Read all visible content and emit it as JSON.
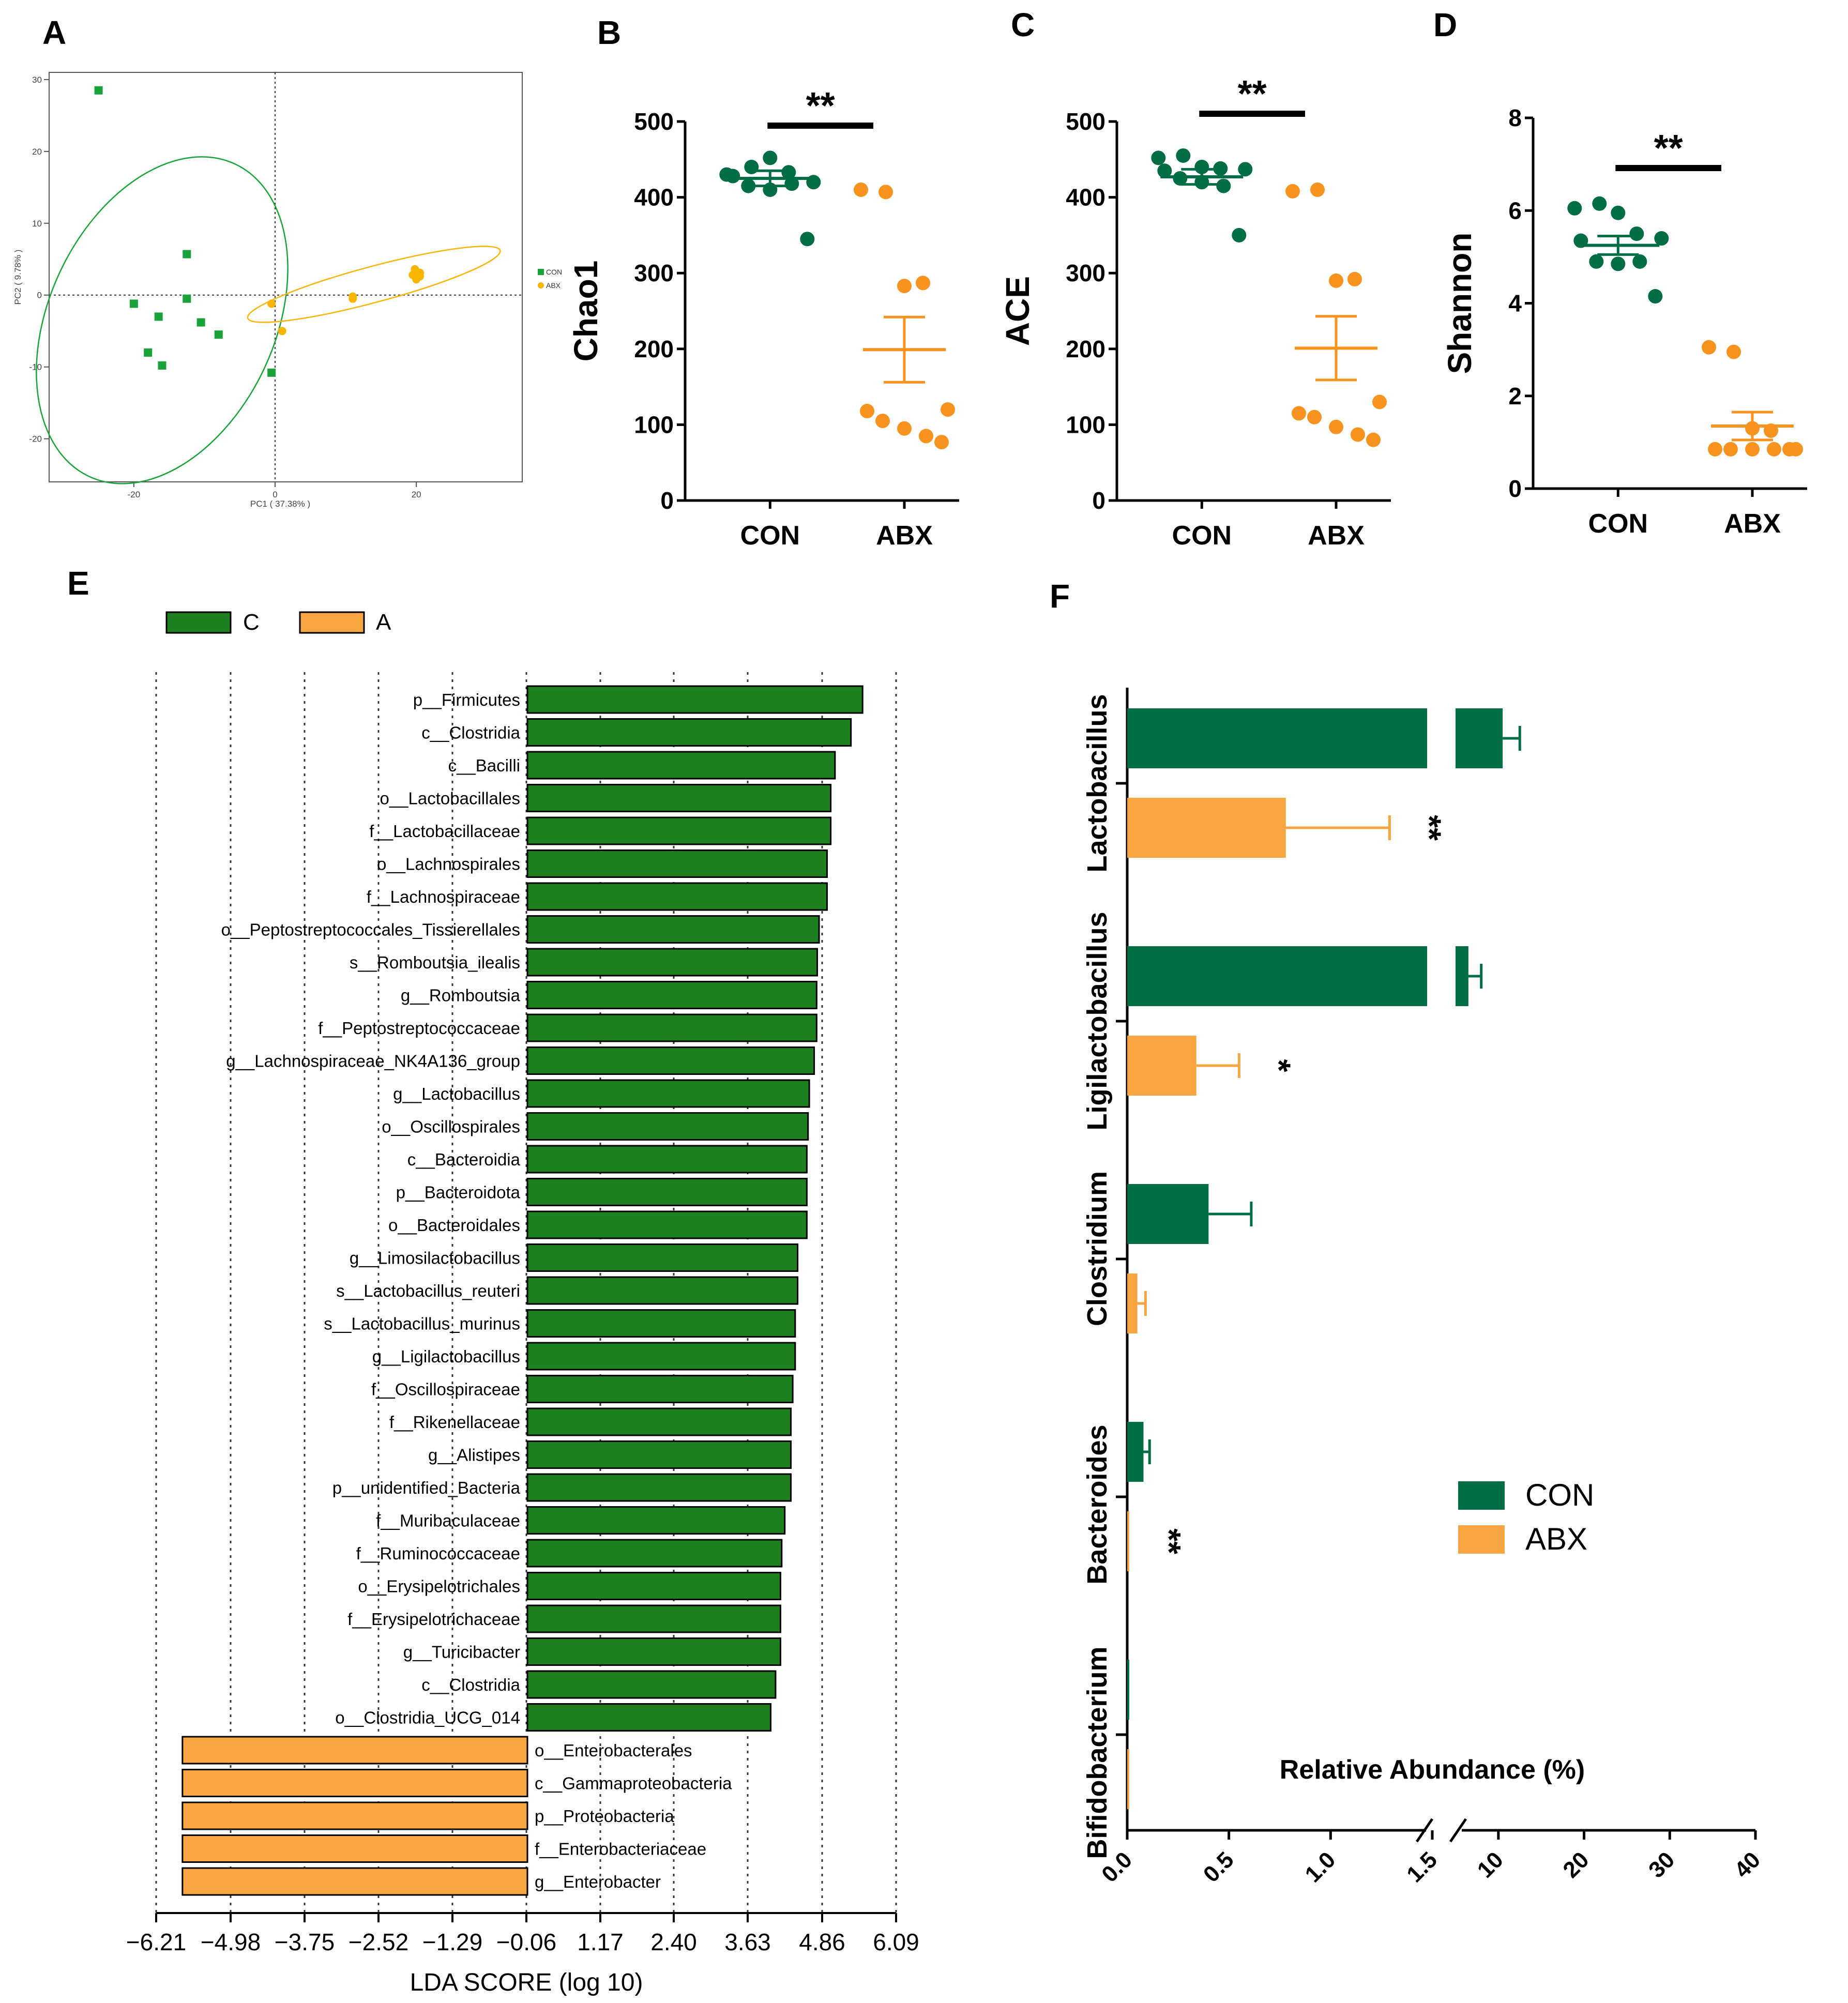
{
  "colors": {
    "con": "#006d44",
    "abx": "#f7931e",
    "pca_con": "#1aa33a",
    "pca_abx": "#f7b500",
    "lefse_c": "#1e7f1e",
    "lefse_a": "#f7a540",
    "f_con": "#006d44",
    "f_abx": "#f7a540"
  },
  "panels": {
    "A": "A",
    "B": "B",
    "C": "C",
    "D": "D",
    "E": "E",
    "F": "F"
  },
  "chart_data": [
    {
      "id": "A",
      "type": "scatter",
      "title": "",
      "xlabel": "PC1 ( 37.38% )",
      "ylabel": "PC2 ( 9.78% )",
      "xlim": [
        -32,
        35
      ],
      "ylim": [
        -26,
        31
      ],
      "xticks": [
        -20,
        0,
        20
      ],
      "yticks": [
        30,
        20,
        10,
        0,
        -10,
        -20
      ],
      "legend": [
        "CON",
        "ABX"
      ],
      "series": [
        {
          "name": "CON",
          "points": [
            [
              -25,
              28.5
            ],
            [
              -20,
              -1.2
            ],
            [
              -16.5,
              -3
            ],
            [
              -18,
              -8
            ],
            [
              -16,
              -9.8
            ],
            [
              -12.5,
              5.7
            ],
            [
              -12.5,
              -0.5
            ],
            [
              -10.5,
              -3.8
            ],
            [
              -8,
              -5.5
            ],
            [
              -0.5,
              -10.8
            ]
          ]
        },
        {
          "name": "ABX",
          "points": [
            [
              -0.5,
              -1.2
            ],
            [
              1,
              -5
            ],
            [
              11,
              -0.5
            ],
            [
              11,
              -0.2
            ],
            [
              19.5,
              2.8
            ],
            [
              20,
              3.2
            ],
            [
              20.5,
              2.6
            ],
            [
              20,
              2.2
            ],
            [
              19.8,
              3.6
            ],
            [
              20.5,
              3.1
            ]
          ]
        }
      ],
      "ellipses": [
        {
          "name": "CON",
          "center": [
            -16,
            -3.5
          ],
          "rx": 16,
          "ry": 24,
          "rotation_deg": 25
        },
        {
          "name": "ABX",
          "center": [
            14,
            1.5
          ],
          "rx": 18.5,
          "ry": 2.5,
          "rotation_deg": -15
        }
      ]
    },
    {
      "id": "B",
      "type": "scatter",
      "ylabel": "Chao1",
      "categories": [
        "CON",
        "ABX"
      ],
      "ylim": [
        0,
        500
      ],
      "yticks": [
        0,
        100,
        200,
        300,
        400,
        500
      ],
      "significance": "**",
      "series": [
        {
          "name": "CON",
          "values": [
            430,
            440,
            452,
            433,
            420,
            428,
            415,
            410,
            418,
            345
          ],
          "mean": 425,
          "sem": 10
        },
        {
          "name": "ABX",
          "values": [
            410,
            407,
            283,
            287,
            120,
            118,
            105,
            95,
            85,
            77
          ],
          "mean": 199,
          "sem": 43
        }
      ]
    },
    {
      "id": "C",
      "type": "scatter",
      "ylabel": "ACE",
      "categories": [
        "CON",
        "ABX"
      ],
      "ylim": [
        0,
        500
      ],
      "yticks": [
        0,
        100,
        200,
        300,
        400,
        500
      ],
      "significance": "**",
      "series": [
        {
          "name": "CON",
          "values": [
            452,
            455,
            440,
            438,
            437,
            435,
            425,
            420,
            415,
            350
          ],
          "mean": 427,
          "sem": 10
        },
        {
          "name": "ABX",
          "values": [
            408,
            410,
            290,
            292,
            130,
            115,
            110,
            97,
            87,
            80
          ],
          "mean": 201,
          "sem": 42
        }
      ]
    },
    {
      "id": "D",
      "type": "scatter",
      "ylabel": "Shannon",
      "categories": [
        "CON",
        "ABX"
      ],
      "ylim": [
        0,
        8
      ],
      "yticks": [
        0,
        2,
        4,
        6,
        8
      ],
      "significance": "**",
      "series": [
        {
          "name": "CON",
          "values": [
            6.05,
            6.15,
            5.95,
            5.5,
            5.4,
            5.35,
            4.9,
            4.85,
            4.9,
            4.15
          ],
          "mean": 5.25,
          "sem": 0.2
        },
        {
          "name": "ABX",
          "values": [
            3.05,
            2.95,
            1.3,
            1.25,
            0.85,
            0.85,
            0.85,
            0.85,
            0.85,
            0.85
          ],
          "mean": 1.35,
          "sem": 0.3
        }
      ]
    },
    {
      "id": "E",
      "type": "bar",
      "orientation": "horizontal",
      "xlabel": "LDA SCORE (log 10)",
      "xticks": [
        "−6.21",
        "−4.98",
        "−3.75",
        "−2.52",
        "−1.29",
        "−0.06",
        "1.17",
        "2.40",
        "3.63",
        "4.86",
        "6.09"
      ],
      "legend": [
        "C",
        "A"
      ],
      "categories": [
        "p__Firmicutes",
        "c__Clostridia",
        "c__Bacilli",
        "o__Lactobacillales",
        "f__Lactobacillaceae",
        "o__Lachnospirales",
        "f__Lachnospiraceae",
        "o__Peptostreptococcales_Tissierellales",
        "s__Romboutsia_ilealis",
        "g__Romboutsia",
        "f__Peptostreptococcaceae",
        "g__Lachnospiraceae_NK4A136_group",
        "g__Lactobacillus",
        "o__Oscillospirales",
        "c__Bacteroidia",
        "p__Bacteroidota",
        "o__Bacteroidales",
        "g__Limosilactobacillus",
        "s__Lactobacillus_reuteri",
        "s__Lactobacillus_murinus",
        "g__Ligilactobacillus",
        "f__Oscillospiraceae",
        "f__Rikenellaceae",
        "g__Alistipes",
        "p__unidentified_Bacteria",
        "f__Muribaculaceae",
        "f__Ruminococcaceae",
        "o__Erysipelotrichales",
        "f__Erysipelotrichaceae",
        "g__Turicibacter",
        "c__Clostridia",
        "o__Clostridia_UCG_014",
        "o__Enterobacterales",
        "c__Gammaproteobacteria",
        "p__Proteobacteria",
        "f__Enterobacteriaceae",
        "g__Enterobacter"
      ],
      "groups": [
        "C",
        "C",
        "C",
        "C",
        "C",
        "C",
        "C",
        "C",
        "C",
        "C",
        "C",
        "C",
        "C",
        "C",
        "C",
        "C",
        "C",
        "C",
        "C",
        "C",
        "C",
        "C",
        "C",
        "C",
        "C",
        "C",
        "C",
        "C",
        "C",
        "C",
        "C",
        "C",
        "A",
        "A",
        "A",
        "A",
        "A"
      ],
      "values": [
        5.47,
        5.28,
        5.02,
        4.95,
        4.95,
        4.89,
        4.89,
        4.76,
        4.73,
        4.72,
        4.72,
        4.68,
        4.6,
        4.58,
        4.56,
        4.56,
        4.56,
        4.41,
        4.41,
        4.37,
        4.37,
        4.33,
        4.3,
        4.3,
        4.3,
        4.2,
        4.15,
        4.13,
        4.13,
        4.13,
        4.05,
        3.97,
        -5.63,
        -5.63,
        -5.63,
        -5.63,
        -5.63
      ]
    },
    {
      "id": "F",
      "type": "bar",
      "orientation": "horizontal",
      "xlabel": "Relative Abundance (%)",
      "xticks": [
        "0.0",
        "0.5",
        "1.0",
        "1.5",
        "10",
        "20",
        "30",
        "40"
      ],
      "axis_break": [
        1.5,
        5
      ],
      "legend": [
        "CON",
        "ABX"
      ],
      "categories": [
        "Lactobacillus",
        "Ligilactobacillus",
        "Clostridium",
        "Bacteroides",
        "Bifidobacterium"
      ],
      "series": [
        {
          "name": "CON",
          "values": [
            10.5,
            6.5,
            0.4,
            0.08,
            0.005
          ],
          "errors": [
            2.0,
            1.5,
            0.21,
            0.03,
            0.0
          ]
        },
        {
          "name": "ABX",
          "values": [
            0.78,
            0.34,
            0.05,
            0.01,
            0.005
          ],
          "errors": [
            0.51,
            0.21,
            0.04,
            0.0,
            0.0
          ]
        }
      ],
      "significance": {
        "ABX": [
          "**",
          "*",
          "",
          "**",
          ""
        ]
      }
    }
  ]
}
